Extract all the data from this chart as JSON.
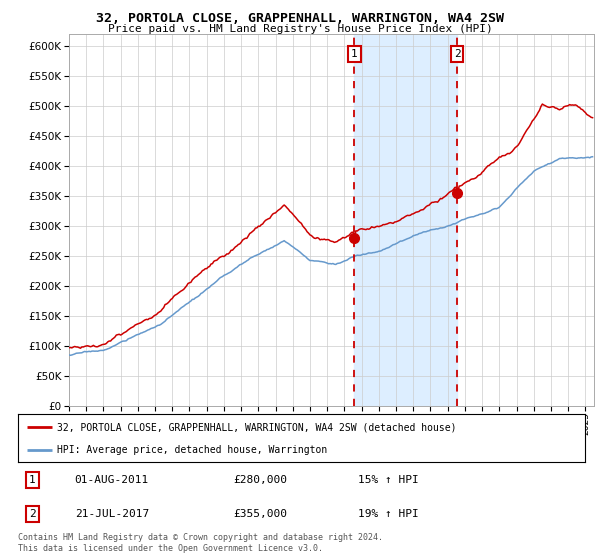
{
  "title": "32, PORTOLA CLOSE, GRAPPENHALL, WARRINGTON, WA4 2SW",
  "subtitle": "Price paid vs. HM Land Registry's House Price Index (HPI)",
  "legend_line1": "32, PORTOLA CLOSE, GRAPPENHALL, WARRINGTON, WA4 2SW (detached house)",
  "legend_line2": "HPI: Average price, detached house, Warrington",
  "annotation1_date": "01-AUG-2011",
  "annotation1_price": "£280,000",
  "annotation1_hpi": "15% ↑ HPI",
  "annotation2_date": "21-JUL-2017",
  "annotation2_price": "£355,000",
  "annotation2_hpi": "19% ↑ HPI",
  "footer": "Contains HM Land Registry data © Crown copyright and database right 2024.\nThis data is licensed under the Open Government Licence v3.0.",
  "sale1_year": 2011.583,
  "sale1_price": 280000,
  "sale2_year": 2017.554,
  "sale2_price": 355000,
  "vline1_year": 2011.583,
  "vline2_year": 2017.554,
  "shade_start": 2011.583,
  "shade_end": 2017.554,
  "red_color": "#cc0000",
  "blue_color": "#6699cc",
  "shade_color": "#ddeeff",
  "background_color": "#ffffff",
  "grid_color": "#cccccc",
  "ylim_min": 0,
  "ylim_max": 620000,
  "xlim_min": 1995,
  "xlim_max": 2025.5
}
